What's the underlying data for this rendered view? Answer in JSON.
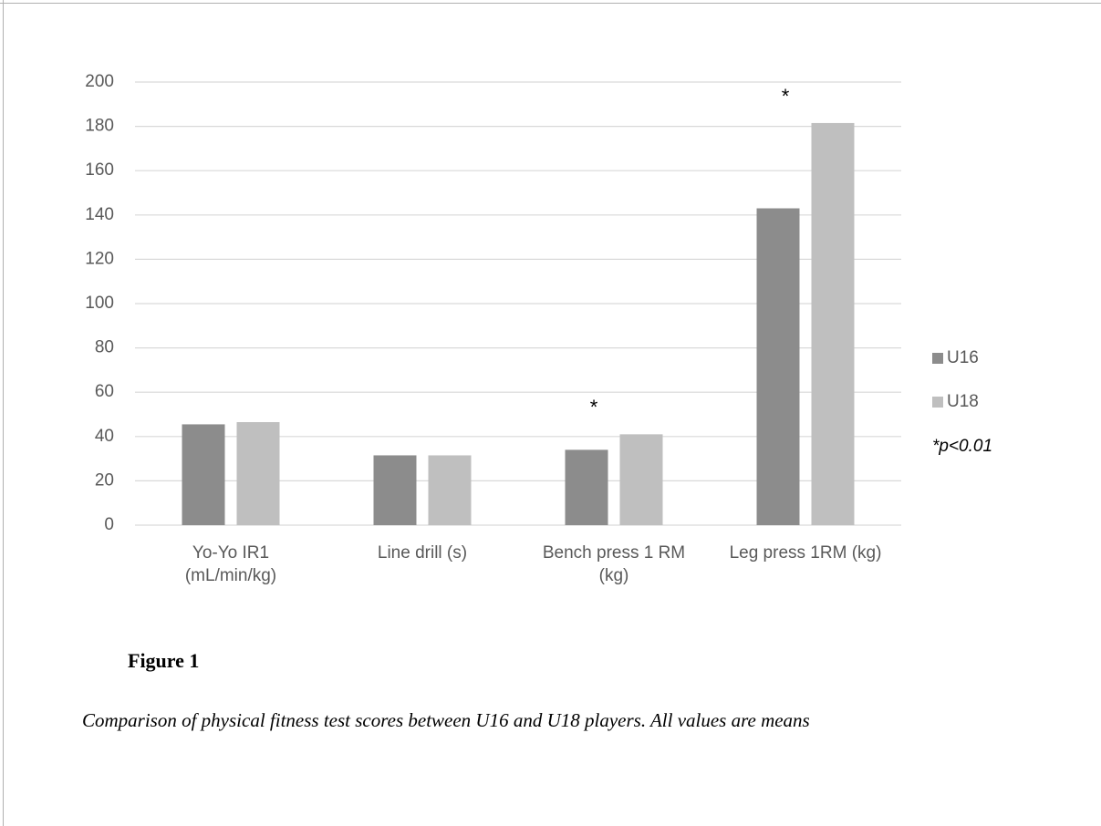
{
  "chart_data": {
    "type": "bar",
    "categories": [
      "Yo-Yo IR1 (mL/min/kg)",
      "Line drill (s)",
      "Bench press 1 RM (kg)",
      "Leg press 1RM (kg)"
    ],
    "series": [
      {
        "name": "U16",
        "color": "#8c8c8c",
        "values": [
          45.5,
          31.5,
          34,
          143
        ]
      },
      {
        "name": "U18",
        "color": "#bfbfbf",
        "values": [
          46.5,
          31.5,
          41,
          181.5
        ]
      }
    ],
    "ylim": [
      0,
      200
    ],
    "yticks": [
      0,
      20,
      40,
      60,
      80,
      100,
      120,
      140,
      160,
      180,
      200
    ],
    "grid": true,
    "legend": "right",
    "legend_note": "*p<0.01",
    "annotations": [
      {
        "text": "*",
        "category": "Bench press 1 RM (kg)",
        "series": "U18"
      },
      {
        "text": "*",
        "category": "Leg press 1RM (kg)",
        "series": "U18"
      }
    ]
  },
  "figure": {
    "label": "Figure 1",
    "caption": "Comparison of physical fitness test scores between U16 and U18 players. All values are means"
  }
}
